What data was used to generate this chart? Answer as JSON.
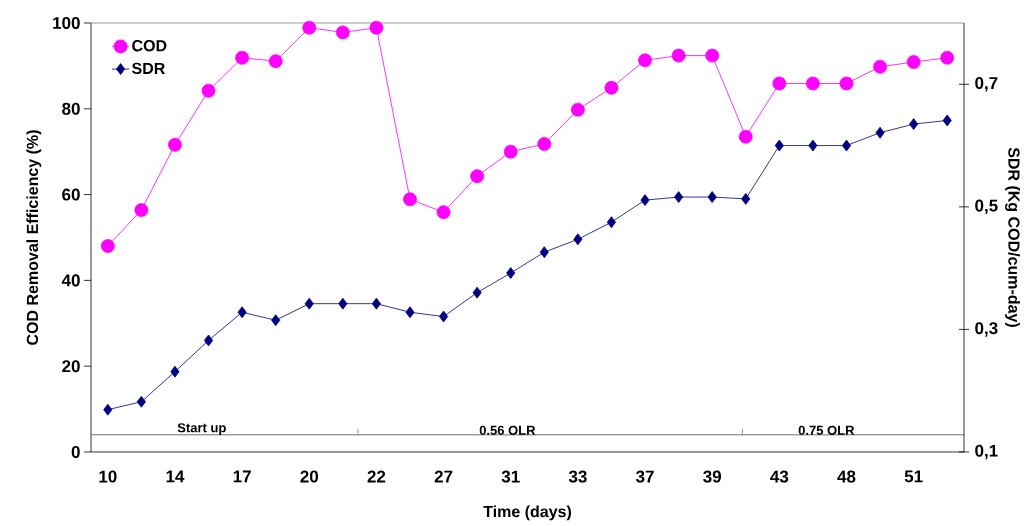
{
  "chart_data": {
    "type": "line",
    "xlabel": "Time (days)",
    "ylabel": "COD Removal Efficiency (%)",
    "y2label": "SDR (Kg COD/cum-day)",
    "categories": [
      "10",
      null,
      "14",
      null,
      "17",
      null,
      "20",
      null,
      "22",
      null,
      "27",
      null,
      "31",
      null,
      "33",
      null,
      "37",
      null,
      "39",
      null,
      "43",
      null,
      "48",
      null,
      "51",
      null
    ],
    "series": [
      {
        "name": "COD",
        "color": "#ff00ff",
        "marker": "circle",
        "values": [
          48.0,
          56.4,
          71.6,
          84.2,
          91.9,
          91.1,
          98.9,
          97.8,
          98.9,
          58.9,
          55.9,
          64.3,
          70.0,
          71.8,
          79.8,
          84.9,
          91.3,
          92.4,
          92.4,
          73.5,
          85.9,
          85.9,
          85.9,
          89.8,
          90.9,
          91.9
        ]
      },
      {
        "name": "SDR",
        "color": "#000080",
        "marker": "diamond",
        "axis": "y2",
        "values": [
          0.169,
          0.182,
          0.231,
          0.282,
          0.328,
          0.315,
          0.342,
          0.342,
          0.342,
          0.328,
          0.321,
          0.36,
          0.392,
          0.426,
          0.447,
          0.475,
          0.511,
          0.516,
          0.516,
          0.513,
          0.6,
          0.6,
          0.6,
          0.621,
          0.635,
          0.641
        ]
      }
    ],
    "ylim": [
      0,
      100
    ],
    "yticks": [
      0,
      20,
      40,
      60,
      80,
      100
    ],
    "y2lim": [
      0.1,
      0.8
    ],
    "y2ticks": [
      {
        "value": 0.1,
        "label": "0,1"
      },
      {
        "value": 0.3,
        "label": "0,3"
      },
      {
        "value": 0.5,
        "label": "0,5"
      },
      {
        "value": 0.7,
        "label": "0,7"
      }
    ],
    "ref_lines": [
      {
        "axis": "y",
        "value": 4,
        "color": "#4c4c4c"
      }
    ],
    "legend": "top left",
    "line_style": "solid",
    "annotations": [
      "Start up",
      "0.56 OLR",
      "0.75 OLR"
    ]
  }
}
